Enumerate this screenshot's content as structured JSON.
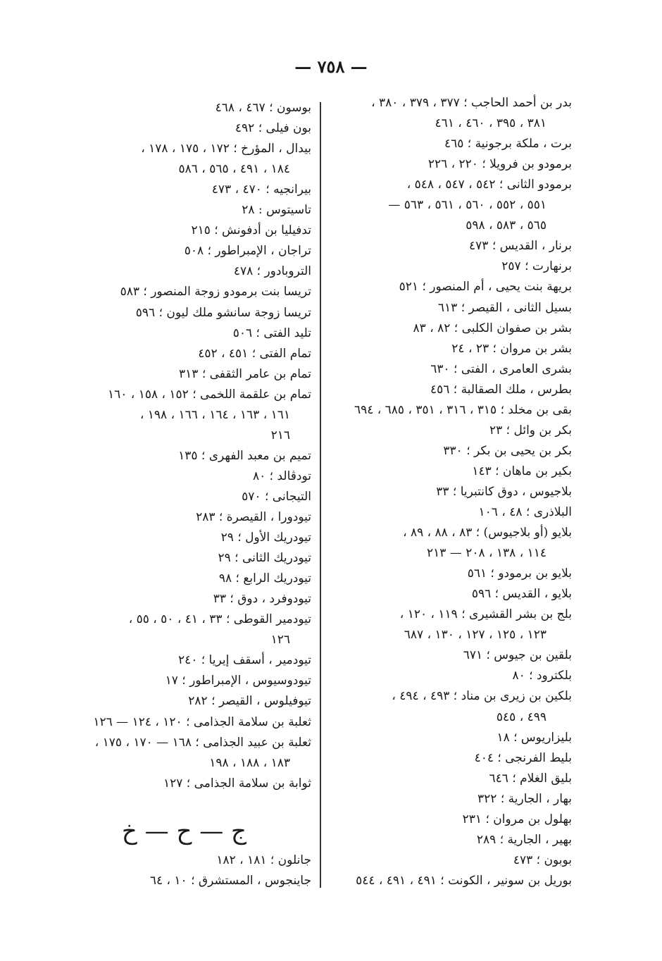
{
  "page_number": "— ٧٥٨ —",
  "right_column": [
    {
      "lines": [
        "بدر بن أحمد الحاجب ؛ ٣٧٧ ، ٣٧٩ ، ٣٨٠ ،",
        "٣٨١ ، ٣٩٥ ، ٤٦٠ ، ٤٦١"
      ]
    },
    {
      "lines": [
        "برت ، ملكة برجونية ؛ ٤٦٥"
      ]
    },
    {
      "lines": [
        "برمودو بن فرويلا ؛ ٢٢٠ ، ٢٢٦"
      ]
    },
    {
      "lines": [
        "برمودو الثانى ؛ ٥٤٢ ، ٥٤٧ ، ٥٤٨ ،",
        "٥٥١ ، ٥٥٢ ، ٥٦٠ ، ٥٦١ ، ٥٦٣ —",
        "٥٦٥ ، ٥٨٣ ، ٥٩٨"
      ]
    },
    {
      "lines": [
        "برنار ، القديس ؛ ٤٧٣"
      ]
    },
    {
      "lines": [
        "برنهارت ؛ ٢٥٧"
      ]
    },
    {
      "lines": [
        "بريهة بنت يحيى ، أم المنصور ؛ ٥٢١"
      ]
    },
    {
      "lines": [
        "بسيل الثانى ، القيصر ؛ ٦١٣"
      ]
    },
    {
      "lines": [
        "بشر بن صفوان الكلبى ؛ ٨٢ ، ٨٣"
      ]
    },
    {
      "lines": [
        "بشر بن مروان ؛ ٢٣ ، ٢٤"
      ]
    },
    {
      "lines": [
        "بشرى العامرى ، الفتى ؛ ٦٣٠"
      ]
    },
    {
      "lines": [
        "بطرس ، ملك الصقالبة ؛ ٤٥٦"
      ]
    },
    {
      "lines": [
        "بقى بن مخلد ؛ ٣١٥ ، ٣١٦ ، ٣٥١ ، ٦٨٥ ، ٦٩٤"
      ]
    },
    {
      "lines": [
        "بكر بن وائل ؛ ٢٣"
      ]
    },
    {
      "lines": [
        "بكر بن يحيى بن بكر ؛ ٣٣٠"
      ]
    },
    {
      "lines": [
        "بكير بن ماهان ؛ ١٤٣"
      ]
    },
    {
      "lines": [
        "بلاجيوس ، دوق كانتبريا ؛ ٣٣"
      ]
    },
    {
      "lines": [
        "البلاذرى ؛ ٤٨ ، ١٠٦"
      ]
    },
    {
      "lines": [
        "بلايو (أو بلاجيوس) ؛ ٨٣ ، ٨٨ ، ٨٩ ،",
        "١١٤ ، ١٣٨ ، ٢٠٨ — ٢١٣"
      ]
    },
    {
      "lines": [
        "بلايو بن برمودو ؛ ٥٦١"
      ]
    },
    {
      "lines": [
        "بلايو ، القديس ؛ ٥٩٦"
      ]
    },
    {
      "lines": [
        "بلج بن بشر القشيرى ؛ ١١٩ ، ١٢٠ ،",
        "١٢٣ ، ١٢٥ ، ١٢٧ ، ١٣٠ ، ٦٨٧"
      ]
    },
    {
      "lines": [
        "بلقين بن جيوس ؛ ٦٧١"
      ]
    },
    {
      "lines": [
        "بلكترود ؛ ٨٠"
      ]
    },
    {
      "lines": [
        "بلكين بن زيرى بن مناد ؛ ٤٩٣ ، ٤٩٤ ،",
        "٤٩٩ ، ٥٤٥"
      ]
    },
    {
      "lines": [
        "بليزاريوس ؛ ١٨"
      ]
    },
    {
      "lines": [
        "بليط الفرنجى ؛ ٤٠٤"
      ]
    },
    {
      "lines": [
        "بليق الغلام ؛ ٦٤٦"
      ]
    },
    {
      "lines": [
        "بهار ، الجارية ؛ ٣٢٢"
      ]
    },
    {
      "lines": [
        "بهلول بن مروان ؛ ٢٣١"
      ]
    },
    {
      "lines": [
        "بهير ، الجارية ؛ ٢٨٩"
      ]
    },
    {
      "lines": [
        "بوبون ؛ ٤٧٣"
      ]
    },
    {
      "lines": [
        "بوريل بن سونير ، الكونت ؛ ٤٩١ ، ٤٩١ ، ٥٤٤"
      ]
    }
  ],
  "left_column": [
    {
      "lines": [
        "بوسون ؛ ٤٦٧ ، ٤٦٨"
      ]
    },
    {
      "lines": [
        "بون فيلى ؛ ٤٩٢"
      ]
    },
    {
      "lines": [
        "بيدال ، المؤرخ ؛ ١٧٢ ، ١٧٥ ، ١٧٨ ،",
        "١٨٤ ، ٤٩١ ، ٥٦٥ ، ٥٨٦"
      ]
    },
    {
      "lines": [
        "بيرانجيه ؛ ٤٧٠ ، ٤٧٣"
      ]
    },
    {
      "lines": [
        "تاسيتوس : ٢٨"
      ]
    },
    {
      "lines": [
        "تدفيليا بن أدفونش ؛ ٢١٥"
      ]
    },
    {
      "lines": [
        "تراجان ، الإمبراطور ؛ ٥٠٨"
      ]
    },
    {
      "lines": [
        "التروبادور ؛ ٤٧٨"
      ]
    },
    {
      "lines": [
        "تريسا بنت برمودو زوجة المنصور ؛ ٥٨٣"
      ]
    },
    {
      "lines": [
        "تريسا زوجة سانشو ملك ليون ؛ ٥٩٦"
      ]
    },
    {
      "lines": [
        "تليد الفتى ؛ ٥٠٦"
      ]
    },
    {
      "lines": [
        "تمام الفتى ؛ ٤٥١ ، ٤٥٢"
      ]
    },
    {
      "lines": [
        "تمام بن عامر الثقفى ؛ ٣١٣"
      ]
    },
    {
      "lines": [
        "تمام بن علقمة اللخمى ؛ ١٥٢ ، ١٥٨ ، ١٦٠",
        "١٦١ ، ١٦٣ ، ١٦٤ ، ١٦٦ ، ١٩٨ ،",
        "٢١٦"
      ]
    },
    {
      "lines": [
        "تميم بن معبد الفهرى ؛ ١٣٥"
      ]
    },
    {
      "lines": [
        "تودڤالد ؛ ٨٠"
      ]
    },
    {
      "lines": [
        "التيجانى ؛ ٥٧٠"
      ]
    },
    {
      "lines": [
        "تيودورا ، القيصرة ؛ ٢٨٣"
      ]
    },
    {
      "lines": [
        "تيودريك الأول ؛ ٢٩"
      ]
    },
    {
      "lines": [
        "تيودريك الثانى ؛ ٢٩"
      ]
    },
    {
      "lines": [
        "تيودريك الرابع ؛ ٩٨"
      ]
    },
    {
      "lines": [
        "تيودوفرد ، دوق ؛ ٣٣"
      ]
    },
    {
      "lines": [
        "تيودمير القوطى ؛ ٣٣ ، ٤١ ، ٥٠ ، ٥٥ ،",
        "١٢٦"
      ]
    },
    {
      "lines": [
        "تيودمير ، أسقف إيريا ؛ ٢٤٠"
      ]
    },
    {
      "lines": [
        "تيودوسيوس ، الإمبراطور ؛ ١٧"
      ]
    },
    {
      "lines": [
        "تيوفيلوس ، القيصر ؛ ٢٨٢"
      ]
    },
    {
      "lines": [
        "ثعلبة بن سلامة الجذامى ؛ ١٢٠ ، ١٢٤ — ١٢٦"
      ]
    },
    {
      "lines": [
        "ثعلبة بن عبيد الجذامى ؛ ١٦٨ — ١٧٠ ، ١٧٥ ،",
        "١٨٣ ، ١٨٨ ، ١٩٨"
      ]
    },
    {
      "lines": [
        "ثوابة بن سلامة الجذامى ؛ ١٢٧"
      ]
    }
  ],
  "section_heading": "ج — ح — خ",
  "section_entries": [
    {
      "lines": [
        "جانلون ؛ ١٨١ ، ١٨٢"
      ]
    },
    {
      "lines": [
        "جاينجوس ، المستشرق ؛ ١٠ ، ٦٤"
      ]
    }
  ]
}
